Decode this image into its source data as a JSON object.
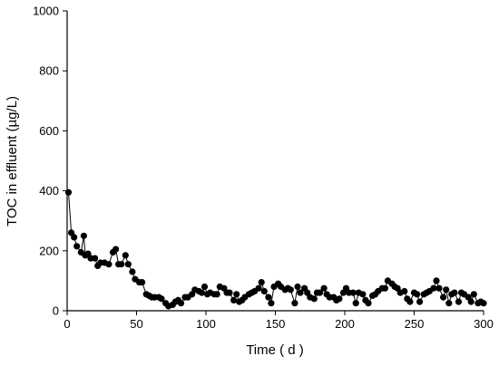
{
  "chart_data": {
    "type": "line",
    "xlabel": "Time ( d )",
    "ylabel": "TOC in effluent (µg/L)",
    "xlim": [
      0,
      300
    ],
    "ylim": [
      0,
      1000
    ],
    "xticks": [
      0,
      50,
      100,
      150,
      200,
      250,
      300
    ],
    "yticks": [
      0,
      200,
      400,
      600,
      800,
      1000
    ],
    "grid": false,
    "series": [
      {
        "x": [
          1,
          3,
          5,
          7,
          10,
          12,
          13,
          15,
          17,
          20,
          22,
          24,
          27,
          30,
          33,
          35,
          37,
          39,
          42,
          44,
          47,
          49,
          52,
          54,
          57,
          59,
          61,
          63,
          66,
          68,
          71,
          73,
          76,
          78,
          80,
          82,
          85,
          87,
          90,
          92,
          95,
          97,
          99,
          101,
          103,
          106,
          108,
          110,
          113,
          115,
          117,
          120,
          122,
          124,
          126,
          128,
          131,
          133,
          135,
          138,
          140,
          142,
          145,
          147,
          149,
          152,
          154,
          157,
          159,
          161,
          164,
          166,
          168,
          171,
          173,
          175,
          178,
          180,
          182,
          185,
          187,
          189,
          192,
          194,
          196,
          199,
          201,
          203,
          206,
          208,
          210,
          213,
          215,
          217,
          220,
          222,
          224,
          227,
          229,
          231,
          234,
          236,
          238,
          240,
          243,
          245,
          247,
          250,
          252,
          254,
          257,
          259,
          261,
          264,
          266,
          268,
          271,
          273,
          275,
          277,
          279,
          282,
          284,
          286,
          289,
          291,
          293,
          296,
          298,
          300
        ],
        "y": [
          395,
          260,
          245,
          215,
          195,
          250,
          185,
          190,
          175,
          175,
          150,
          160,
          160,
          155,
          195,
          205,
          155,
          155,
          185,
          155,
          130,
          105,
          95,
          95,
          55,
          50,
          45,
          45,
          45,
          40,
          25,
          15,
          20,
          30,
          35,
          25,
          45,
          45,
          55,
          70,
          65,
          60,
          80,
          55,
          60,
          55,
          55,
          80,
          75,
          60,
          60,
          35,
          55,
          30,
          35,
          45,
          55,
          60,
          65,
          75,
          95,
          65,
          45,
          25,
          80,
          90,
          80,
          70,
          75,
          70,
          25,
          80,
          60,
          75,
          60,
          45,
          40,
          60,
          60,
          75,
          55,
          45,
          45,
          35,
          40,
          60,
          75,
          60,
          60,
          25,
          60,
          55,
          35,
          25,
          50,
          55,
          65,
          75,
          75,
          100,
          90,
          80,
          75,
          60,
          65,
          40,
          30,
          60,
          55,
          30,
          55,
          60,
          65,
          75,
          100,
          75,
          45,
          70,
          25,
          55,
          60,
          30,
          60,
          55,
          45,
          30,
          55,
          25,
          30,
          25
        ]
      }
    ]
  }
}
